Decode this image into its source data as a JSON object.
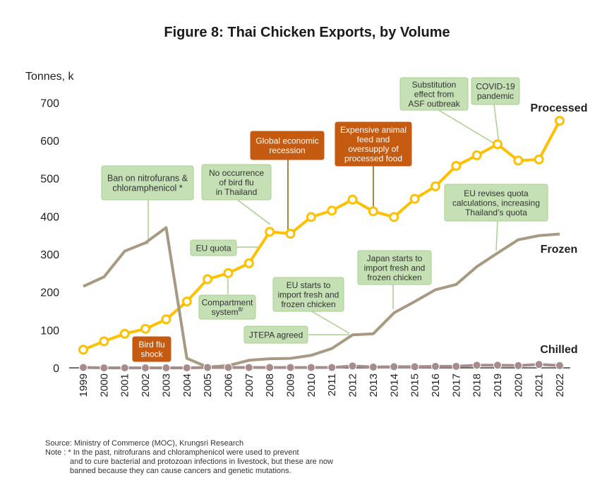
{
  "chart_data": {
    "type": "line",
    "title": "Figure 8: Thai Chicken Exports, by Volume",
    "ylabel": "Tonnes, k",
    "xlabel": "",
    "ylim": [
      0,
      700
    ],
    "yticks": [
      0,
      100,
      200,
      300,
      400,
      500,
      600,
      700
    ],
    "grid": false,
    "categories": [
      "1999",
      "2000",
      "2001",
      "2002",
      "2003",
      "2004",
      "2005",
      "2006",
      "2007",
      "2008",
      "2009",
      "2010",
      "2011",
      "2012",
      "2013",
      "2014",
      "2015",
      "2016",
      "2017",
      "2018",
      "2019",
      "2020",
      "2021",
      "2022"
    ],
    "series": [
      {
        "name": "Processed",
        "color": "#FFC000",
        "values": [
          48,
          70,
          90,
          103,
          128,
          175,
          234,
          250,
          276,
          359,
          354,
          398,
          415,
          444,
          413,
          398,
          446,
          479,
          533,
          561,
          590,
          547,
          550,
          652
        ]
      },
      {
        "name": "Frozen",
        "color": "#A89A82",
        "values": [
          215,
          240,
          308,
          330,
          370,
          25,
          2,
          6,
          20,
          24,
          25,
          33,
          51,
          87,
          90,
          145,
          175,
          206,
          220,
          267,
          303,
          338,
          349,
          353
        ]
      },
      {
        "name": "Chilled",
        "color": "#A68C8C",
        "values": [
          1,
          0,
          0,
          0,
          0,
          0,
          1,
          1,
          1,
          1,
          1,
          1,
          1,
          5,
          2,
          3,
          3,
          4,
          4,
          7,
          7,
          6,
          9,
          6
        ]
      }
    ],
    "annotations": [
      {
        "text": "Ban on nitrofurans & chloramphenicol *",
        "style": "green",
        "lines": [
          "Ban on nitrofurans &",
          "chloramphenicol *"
        ]
      },
      {
        "text": "No occurrence of bird flu in Thailand",
        "style": "green",
        "lines": [
          "No occurrence",
          "of bird flu",
          "in Thailand"
        ]
      },
      {
        "text": "Global economic recession",
        "style": "orange",
        "lines": [
          "Global economic",
          "recession"
        ]
      },
      {
        "text": "Expensive animal feed and oversupply of processed food",
        "style": "orange",
        "lines": [
          "Expensive animal",
          "feed and",
          "oversupply of",
          "processed food"
        ]
      },
      {
        "text": "Substitution effect from ASF outbreak",
        "style": "green",
        "lines": [
          "Substitution",
          "effect from",
          "ASF outbreak"
        ]
      },
      {
        "text": "COVID-19 pandemic",
        "style": "green",
        "lines": [
          "COVID-19",
          "pandemic"
        ]
      },
      {
        "text": "EU revises quota calculations, increasing Thailand's quota",
        "style": "green",
        "lines": [
          "EU revises quota",
          "calculations, increasing",
          "Thailand’s quota"
        ]
      },
      {
        "text": "EU quota",
        "style": "green",
        "lines": [
          "EU quota"
        ]
      },
      {
        "text": "Compartment system8/",
        "style": "green",
        "lines": [
          "Compartment",
          "system8/"
        ]
      },
      {
        "text": "Japan starts to import fresh and frozen chicken",
        "style": "green",
        "lines": [
          "Japan starts to",
          "import fresh and",
          "frozen chicken"
        ]
      },
      {
        "text": "EU starts to import fresh and frozen chicken",
        "style": "green",
        "lines": [
          "EU starts to",
          "import fresh and",
          "frozen chicken"
        ]
      },
      {
        "text": "JTEPA agreed",
        "style": "green",
        "lines": [
          "JTEPA agreed"
        ]
      },
      {
        "text": "Bird flu shock",
        "style": "orange",
        "lines": [
          "Bird flu",
          "shock"
        ]
      }
    ]
  },
  "colors": {
    "green_fill": "#C5E0B4",
    "green_border": "#A9D18E",
    "orange_fill": "#C55A11",
    "connector": "#A9D18E",
    "connector_dark": "#7F6000"
  },
  "footnotes": {
    "source": "Source: Ministry of Commerce (MOC), Krungsri Research",
    "note_1": "Note : * In the past, nitrofurans and chloramphenicol were used to prevent",
    "note_2": "and to cure bacterial and protozoan infections in livestock, but these are now",
    "note_3": "banned because they can cause cancers and genetic mutations."
  }
}
